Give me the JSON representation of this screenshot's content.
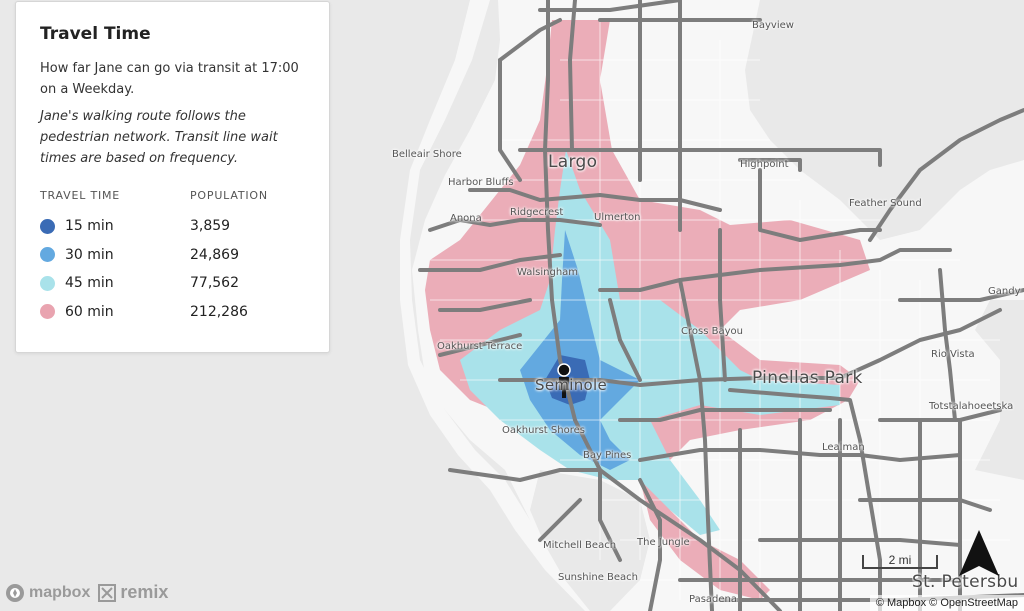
{
  "panel": {
    "title": "Travel Time",
    "description": "How far Jane can go via transit at 17:00 on a Weekday.",
    "note": "Jane's walking route follows the pedestrian network. Transit line wait times are based on frequency.",
    "legend_header": {
      "time": "TRAVEL TIME",
      "population": "POPULATION"
    },
    "legend": [
      {
        "label": "15 min",
        "population": "3,859",
        "color": "#3a6bb5"
      },
      {
        "label": "30 min",
        "population": "24,869",
        "color": "#63a9e0"
      },
      {
        "label": "45 min",
        "population": "77,562",
        "color": "#a9e2ea"
      },
      {
        "label": "60 min",
        "population": "212,286",
        "color": "#e9a4b0"
      }
    ]
  },
  "places": {
    "largo": "Largo",
    "seminole": "Seminole",
    "pinellas_park": "Pinellas Park",
    "st_petersburg": "St. Petersburg",
    "bayview": "Bayview",
    "belleair_shore": "Belleair Shore",
    "highpoint": "Highpoint",
    "harbor_bluffs": "Harbor Bluffs",
    "ridgecrest": "Ridgecrest",
    "ulmerton": "Ulmerton",
    "anona": "Anona",
    "feather_sound": "Feather Sound",
    "walsingham": "Walsingham",
    "gandy": "Gandy",
    "cross_bayou": "Cross Bayou",
    "oakhurst_terrace": "Oakhurst Terrace",
    "rio_vista": "Rio Vista",
    "totstalahoeetska": "Totstalahoeetska",
    "oakhurst_shores": "Oakhurst Shores",
    "lealman": "Lealman",
    "bay_pines": "Bay Pines",
    "mitchell_beach": "Mitchell Beach",
    "the_jungle": "The Jungle",
    "sunshine_beach": "Sunshine Beach",
    "pasadena": "Pasadena"
  },
  "scale_label": "2 mi",
  "logos": {
    "mapbox": "mapbox",
    "remix": "remix"
  },
  "attribution": "© Mapbox © OpenStreetMap",
  "colors": {
    "water": "#e9e9e9",
    "land": "#f7f7f7",
    "road": "#7d7d7d",
    "local_street": "#ffffff"
  }
}
